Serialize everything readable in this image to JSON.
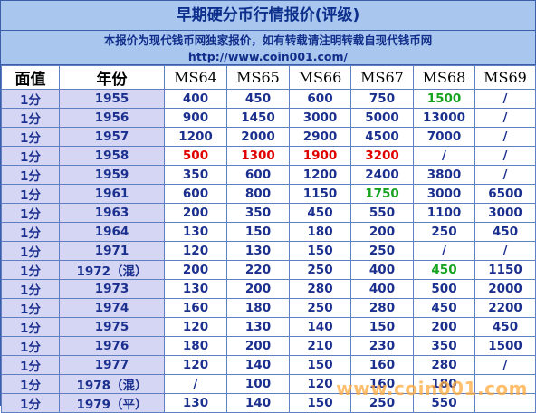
{
  "page": {
    "title": "早期硬分币行情报价(评级)",
    "notice_line1": "本报价为现代钱币网独家报价，如有转载请注明转载自现代钱币网",
    "notice_line2": "http://www.coin001.com/",
    "watermark": "www.coin001.com"
  },
  "table": {
    "headers": [
      "面值",
      "年份",
      "MS64",
      "MS65",
      "MS66",
      "MS67",
      "MS68",
      "MS69"
    ],
    "rows": [
      {
        "denom": "1分",
        "year": "1955",
        "values": [
          "400",
          "450",
          "600",
          "750",
          "1500",
          "/"
        ],
        "colors": [
          "",
          "",
          "",
          "",
          "green",
          ""
        ]
      },
      {
        "denom": "1分",
        "year": "1956",
        "values": [
          "900",
          "1450",
          "3000",
          "5000",
          "13000",
          "/"
        ],
        "colors": [
          "",
          "",
          "",
          "",
          "",
          ""
        ]
      },
      {
        "denom": "1分",
        "year": "1957",
        "values": [
          "1200",
          "2000",
          "2900",
          "4500",
          "7000",
          "/"
        ],
        "colors": [
          "",
          "",
          "",
          "",
          "",
          ""
        ]
      },
      {
        "denom": "1分",
        "year": "1958",
        "values": [
          "500",
          "1300",
          "1900",
          "3200",
          "/",
          "/"
        ],
        "colors": [
          "red",
          "red",
          "red",
          "red",
          "",
          ""
        ]
      },
      {
        "denom": "1分",
        "year": "1959",
        "values": [
          "350",
          "600",
          "1200",
          "2400",
          "3800",
          "/"
        ],
        "colors": [
          "",
          "",
          "",
          "",
          "",
          ""
        ]
      },
      {
        "denom": "1分",
        "year": "1961",
        "values": [
          "600",
          "800",
          "1150",
          "1750",
          "3000",
          "6500"
        ],
        "colors": [
          "",
          "",
          "",
          "green",
          "",
          ""
        ]
      },
      {
        "denom": "1分",
        "year": "1963",
        "values": [
          "200",
          "350",
          "450",
          "550",
          "1100",
          "3000"
        ],
        "colors": [
          "",
          "",
          "",
          "",
          "",
          ""
        ]
      },
      {
        "denom": "1分",
        "year": "1964",
        "values": [
          "130",
          "150",
          "180",
          "200",
          "250",
          "450"
        ],
        "colors": [
          "",
          "",
          "",
          "",
          "",
          ""
        ]
      },
      {
        "denom": "1分",
        "year": "1971",
        "values": [
          "120",
          "130",
          "150",
          "250",
          "/",
          "/"
        ],
        "colors": [
          "",
          "",
          "",
          "",
          "",
          ""
        ]
      },
      {
        "denom": "1分",
        "year": "1972（混）",
        "values": [
          "200",
          "220",
          "250",
          "400",
          "450",
          "1150"
        ],
        "colors": [
          "",
          "",
          "",
          "",
          "green",
          ""
        ]
      },
      {
        "denom": "1分",
        "year": "1973",
        "values": [
          "130",
          "200",
          "280",
          "400",
          "500",
          "2000"
        ],
        "colors": [
          "",
          "",
          "",
          "",
          "",
          ""
        ]
      },
      {
        "denom": "1分",
        "year": "1974",
        "values": [
          "160",
          "180",
          "250",
          "280",
          "450",
          "2200"
        ],
        "colors": [
          "",
          "",
          "",
          "",
          "",
          ""
        ]
      },
      {
        "denom": "1分",
        "year": "1975",
        "values": [
          "120",
          "130",
          "140",
          "150",
          "200",
          "450"
        ],
        "colors": [
          "",
          "",
          "",
          "",
          "",
          ""
        ]
      },
      {
        "denom": "1分",
        "year": "1976",
        "values": [
          "180",
          "200",
          "210",
          "230",
          "350",
          "1500"
        ],
        "colors": [
          "",
          "",
          "",
          "",
          "",
          ""
        ]
      },
      {
        "denom": "1分",
        "year": "1977",
        "values": [
          "120",
          "140",
          "150",
          "160",
          "280",
          "/"
        ],
        "colors": [
          "",
          "",
          "",
          "",
          "",
          ""
        ]
      },
      {
        "denom": "1分",
        "year": "1978（混）",
        "values": [
          "/",
          "100",
          "120",
          "160",
          "180",
          ""
        ],
        "colors": [
          "",
          "",
          "",
          "",
          "",
          ""
        ]
      },
      {
        "denom": "1分",
        "year": "1979（平）",
        "values": [
          "130",
          "140",
          "150",
          "250",
          "550",
          ""
        ],
        "colors": [
          "",
          "",
          "",
          "",
          "",
          ""
        ]
      }
    ]
  }
}
